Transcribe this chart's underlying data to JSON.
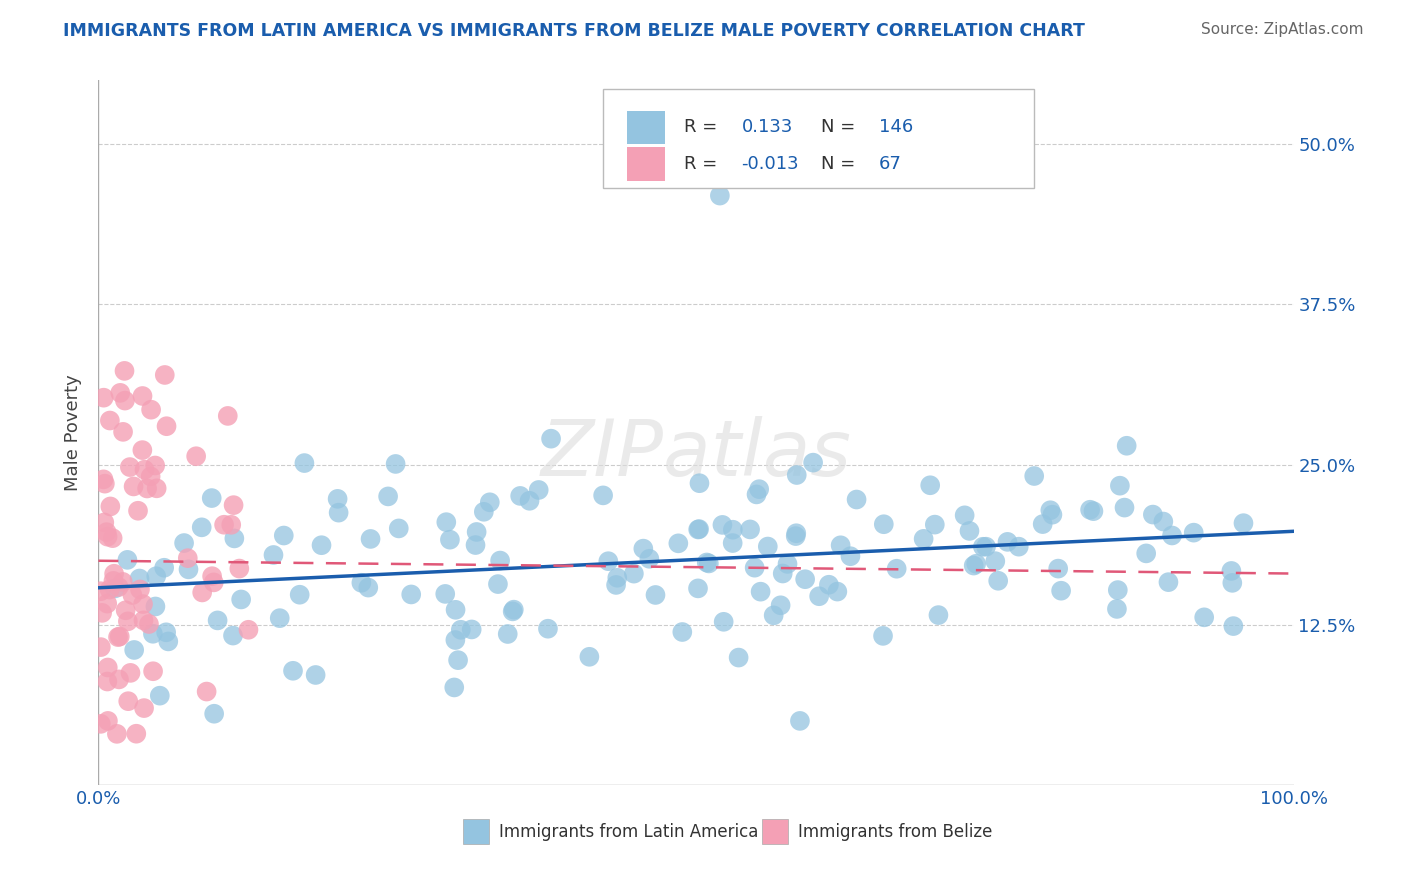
{
  "title": "IMMIGRANTS FROM LATIN AMERICA VS IMMIGRANTS FROM BELIZE MALE POVERTY CORRELATION CHART",
  "source": "Source: ZipAtlas.com",
  "ylabel": "Male Poverty",
  "watermark": "ZIPatlas",
  "xlim": [
    0,
    1.0
  ],
  "ylim": [
    0,
    0.55
  ],
  "ytick_labels_right": [
    "12.5%",
    "25.0%",
    "37.5%",
    "50.0%"
  ],
  "ytick_values_right": [
    0.125,
    0.25,
    0.375,
    0.5
  ],
  "blue_R": "0.133",
  "blue_N": "146",
  "pink_R": "-0.013",
  "pink_N": "67",
  "blue_color": "#94C4E0",
  "pink_color": "#F4A0B5",
  "blue_line_color": "#1A5DAD",
  "pink_line_color": "#E05878",
  "background_color": "#FFFFFF",
  "title_color": "#1A5DAD",
  "grid_color": "#CCCCCC",
  "legend_text_color": "#333333",
  "legend_value_color": "#1A5DAD"
}
